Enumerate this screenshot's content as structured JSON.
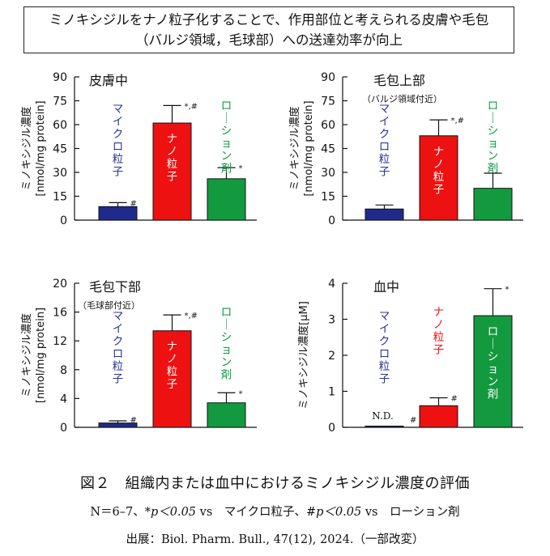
{
  "header": {
    "title_line1": "ミノキシジルをナノ粒子化することで、作用部位と考えられる皮膚や毛包",
    "title_line2": "（バルジ領域，毛球部）への送達効率が向上"
  },
  "colors": {
    "micro": "#1f2a8a",
    "nano": "#ee1111",
    "lotion": "#139a3f",
    "micro_text": "#2a3399",
    "nano_text": "#ee1111",
    "lotion_text": "#0a9a45"
  },
  "chart_data": [
    {
      "type": "bar",
      "title": "皮膚中",
      "subtitle": "",
      "ylabel_line1": "ミノキシジル濃度",
      "ylabel_line2": "[nmol/mg protein]",
      "ylim": [
        0,
        90
      ],
      "ticks": [
        "0",
        "15",
        "30",
        "45",
        "60",
        "75",
        "90"
      ],
      "categories": [
        "マイクロ粒子",
        "ナノ粒子",
        "ローション剤"
      ],
      "values": [
        8.5,
        61,
        26
      ],
      "errors": [
        2.5,
        11,
        7
      ],
      "sig": [
        "#",
        "*,#",
        "*"
      ]
    },
    {
      "type": "bar",
      "title": "毛包上部",
      "subtitle": "（バルジ領域付近）",
      "ylabel_line1": "ミノキシジル濃度",
      "ylabel_line2": "[nmol/mg protein]",
      "ylim": [
        0,
        90
      ],
      "ticks": [
        "0",
        "15",
        "30",
        "45",
        "60",
        "75",
        "90"
      ],
      "categories": [
        "マイクロ粒子",
        "ナノ粒子",
        "ローション剤"
      ],
      "values": [
        7,
        53,
        20
      ],
      "errors": [
        2.5,
        10,
        9.5
      ],
      "sig": [
        "",
        "*,#",
        ""
      ]
    },
    {
      "type": "bar",
      "title": "毛包下部",
      "subtitle": "（毛球部付近）",
      "ylabel_line1": "ミノキシジル濃度",
      "ylabel_line2": "[nmol/mg protein]",
      "ylim": [
        0,
        20
      ],
      "ticks": [
        "0",
        "4",
        "8",
        "12",
        "16",
        "20"
      ],
      "categories": [
        "マイクロ粒子",
        "ナノ粒子",
        "ローション剤"
      ],
      "values": [
        0.6,
        13.4,
        3.4
      ],
      "errors": [
        0.3,
        2.2,
        1.4
      ],
      "sig": [
        "#",
        "*,#",
        "*"
      ]
    },
    {
      "type": "bar",
      "title": "血中",
      "subtitle": "",
      "ylabel_line1": "ミノキシジル濃度[μM]",
      "ylabel_line2": "",
      "ylim": [
        0,
        4
      ],
      "ticks": [
        "0",
        "1",
        "2",
        "3",
        "4"
      ],
      "categories": [
        "マイクロ粒子",
        "ナノ粒子",
        "ローション剤"
      ],
      "values": [
        0,
        0.6,
        3.1
      ],
      "errors": [
        0,
        0.22,
        0.75
      ],
      "sig": [
        "#",
        "#",
        "*"
      ],
      "nd_label": "N.D."
    }
  ],
  "captions": {
    "figure": "図２　組織内または血中におけるミノキシジル濃度の評価",
    "stats_n": "N＝6–7、",
    "stats_star": "*p＜0.05",
    "stats_vs1": " vs　マイクロ粒子、",
    "stats_hash": "#p＜0.05",
    "stats_vs2": " vs　ローション剤",
    "source": "出展：Biol. Pharm. Bull., 47(12), 2024.（一部改変）"
  }
}
